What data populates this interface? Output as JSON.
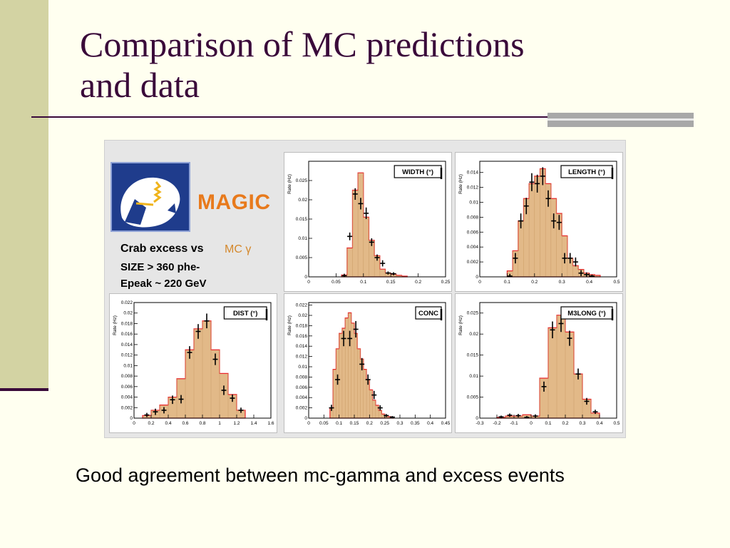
{
  "slide": {
    "title_line1": "Comparison of MC predictions",
    "title_line2": "and data",
    "caption": "Good agreement between mc-gamma and excess events"
  },
  "legend_box": {
    "logo_text": "MAGIC",
    "line1": "Crab excess vs",
    "mc_label": "MC  γ",
    "line2": "SIZE > 360 phe-",
    "line3": "Epeak ~ 220 GeV"
  },
  "colors": {
    "title": "#3a0a3a",
    "mc_fill": "#e2b988",
    "mc_line": "#e8262a",
    "data_points": "#000000",
    "logo_text": "#e87a1c"
  },
  "chart_data": [
    {
      "id": "width",
      "type": "bar",
      "title": "WIDTH (°)",
      "ylabel": "Rate (Hz)",
      "xlim": [
        0,
        0.25
      ],
      "ylim": [
        0,
        0.03
      ],
      "xticks": [
        0,
        0.05,
        0.1,
        0.15,
        0.2,
        0.25
      ],
      "xtick_labels": [
        "0",
        "0.05",
        "0.1",
        "0.15",
        "0.2",
        "0.25"
      ],
      "yticks": [
        0,
        0.005,
        0.01,
        0.015,
        0.02,
        0.025
      ],
      "ytick_labels": [
        "0",
        "0.005",
        "0.01",
        "0.015",
        "0.02",
        "0.025"
      ],
      "bin_edges": [
        0.06,
        0.07,
        0.08,
        0.09,
        0.1,
        0.11,
        0.12,
        0.13,
        0.14,
        0.15,
        0.16,
        0.17,
        0.18
      ],
      "mc": [
        0.0005,
        0.0075,
        0.0225,
        0.027,
        0.0155,
        0.0095,
        0.0055,
        0.002,
        0.001,
        0.0007,
        0.0004,
        0.0002
      ],
      "data_x": [
        0.065,
        0.075,
        0.085,
        0.095,
        0.105,
        0.115,
        0.125,
        0.135,
        0.145,
        0.155
      ],
      "data_y": [
        0.0003,
        0.0105,
        0.0215,
        0.019,
        0.0165,
        0.009,
        0.005,
        0.0035,
        0.001,
        0.0008
      ],
      "data_err": [
        0.0005,
        0.001,
        0.0015,
        0.0015,
        0.0015,
        0.001,
        0.0008,
        0.0008,
        0.0004,
        0.0004
      ]
    },
    {
      "id": "length",
      "type": "bar",
      "title": "LENGTH (°)",
      "ylabel": "Rate (Hz)",
      "xlim": [
        0,
        0.5
      ],
      "ylim": [
        0,
        0.0155
      ],
      "xticks": [
        0,
        0.1,
        0.2,
        0.3,
        0.4,
        0.5
      ],
      "xtick_labels": [
        "0",
        "0.1",
        "0.2",
        "0.3",
        "0.4",
        "0.5"
      ],
      "yticks": [
        0,
        0.002,
        0.004,
        0.006,
        0.008,
        0.01,
        0.012,
        0.014
      ],
      "ytick_labels": [
        "0",
        "0.002",
        "0.004",
        "0.006",
        "0.008",
        "0.01",
        "0.012",
        "0.014"
      ],
      "bin_edges": [
        0.1,
        0.12,
        0.14,
        0.16,
        0.18,
        0.2,
        0.22,
        0.24,
        0.26,
        0.28,
        0.3,
        0.32,
        0.34,
        0.36,
        0.38,
        0.4,
        0.42,
        0.44
      ],
      "mc": [
        0.0008,
        0.0035,
        0.0075,
        0.0105,
        0.0125,
        0.0135,
        0.0145,
        0.0125,
        0.0105,
        0.0085,
        0.0055,
        0.0025,
        0.0015,
        0.001,
        0.0005,
        0.0003,
        0.0002
      ],
      "data_x": [
        0.11,
        0.13,
        0.15,
        0.17,
        0.19,
        0.21,
        0.23,
        0.25,
        0.27,
        0.29,
        0.31,
        0.33,
        0.35,
        0.37,
        0.39,
        0.41
      ],
      "data_y": [
        0.0001,
        0.0025,
        0.0075,
        0.0095,
        0.0127,
        0.0125,
        0.0135,
        0.0105,
        0.0075,
        0.0073,
        0.0025,
        0.0025,
        0.002,
        0.0005,
        0.0003,
        0.0001
      ],
      "data_err": [
        0.0003,
        0.0007,
        0.001,
        0.0011,
        0.0012,
        0.0012,
        0.0012,
        0.0011,
        0.001,
        0.001,
        0.0007,
        0.0007,
        0.0006,
        0.0004,
        0.0003,
        0.0002
      ]
    },
    {
      "id": "dist",
      "type": "bar",
      "title": "DIST (°)",
      "ylabel": "Rate (Hz)",
      "xlim": [
        0,
        1.6
      ],
      "ylim": [
        0,
        0.022
      ],
      "xticks": [
        0,
        0.2,
        0.4,
        0.6,
        0.8,
        1,
        1.2,
        1.4,
        1.6
      ],
      "xtick_labels": [
        "0",
        "0.2",
        "0.4",
        "0.6",
        "0.8",
        "1",
        "1.2",
        "1.4",
        "1.6"
      ],
      "yticks": [
        0,
        0.002,
        0.004,
        0.006,
        0.008,
        0.01,
        0.012,
        0.014,
        0.016,
        0.018,
        0.02,
        0.022
      ],
      "ytick_labels": [
        "0",
        "0.002",
        "0.004",
        "0.006",
        "0.008",
        "0.01",
        "0.012",
        "0.014",
        "0.016",
        "0.018",
        "0.02",
        "0.022"
      ],
      "bin_edges": [
        0.1,
        0.2,
        0.3,
        0.4,
        0.5,
        0.6,
        0.7,
        0.8,
        0.9,
        1.0,
        1.1,
        1.2,
        1.3
      ],
      "mc": [
        0.0005,
        0.0015,
        0.0025,
        0.004,
        0.0075,
        0.013,
        0.017,
        0.0185,
        0.013,
        0.0085,
        0.0045,
        0.0015
      ],
      "data_x": [
        0.15,
        0.25,
        0.35,
        0.45,
        0.55,
        0.65,
        0.75,
        0.85,
        0.95,
        1.05,
        1.15,
        1.25
      ],
      "data_y": [
        0.0006,
        0.0012,
        0.0015,
        0.0035,
        0.0036,
        0.0125,
        0.0165,
        0.0185,
        0.0112,
        0.0053,
        0.0038,
        0.0015
      ],
      "data_err": [
        0.0004,
        0.0006,
        0.0006,
        0.0008,
        0.0008,
        0.0012,
        0.0014,
        0.0014,
        0.0011,
        0.0009,
        0.0007,
        0.0005
      ]
    },
    {
      "id": "conc",
      "type": "bar",
      "title": "CONC",
      "ylabel": "Rate (Hz)",
      "xlim": [
        0,
        0.45
      ],
      "ylim": [
        0,
        0.0225
      ],
      "xticks": [
        0,
        0.05,
        0.1,
        0.15,
        0.2,
        0.25,
        0.3,
        0.35,
        0.4,
        0.45
      ],
      "xtick_labels": [
        "0",
        "0.05",
        "0.1",
        "0.15",
        "0.2",
        "0.25",
        "0.3",
        "0.35",
        "0.4",
        "0.45"
      ],
      "yticks": [
        0,
        0.002,
        0.004,
        0.006,
        0.008,
        0.01,
        0.012,
        0.014,
        0.016,
        0.018,
        0.02,
        0.022
      ],
      "ytick_labels": [
        "0",
        "0.002",
        "0.004",
        "0.006",
        "0.008",
        "0.01",
        "0.012",
        "0.014",
        "0.016",
        "0.018",
        "0.02",
        "0.022"
      ],
      "bin_edges": [
        0.07,
        0.08,
        0.09,
        0.1,
        0.11,
        0.12,
        0.13,
        0.14,
        0.15,
        0.16,
        0.17,
        0.18,
        0.19,
        0.2,
        0.21,
        0.22,
        0.23,
        0.24,
        0.25,
        0.26,
        0.27,
        0.28
      ],
      "mc": [
        0.002,
        0.0095,
        0.0135,
        0.0165,
        0.0175,
        0.0195,
        0.0205,
        0.0185,
        0.0165,
        0.0135,
        0.0115,
        0.0095,
        0.0075,
        0.0055,
        0.0035,
        0.0025,
        0.0015,
        0.0008,
        0.0005,
        0.0003,
        0.0002
      ],
      "data_x": [
        0.075,
        0.095,
        0.115,
        0.135,
        0.155,
        0.175,
        0.195,
        0.215,
        0.235,
        0.255,
        0.275
      ],
      "data_y": [
        0.002,
        0.0075,
        0.0155,
        0.0155,
        0.0173,
        0.0105,
        0.0075,
        0.0045,
        0.002,
        0.0005,
        0.0002
      ],
      "data_err": [
        0.0006,
        0.001,
        0.0015,
        0.0015,
        0.0016,
        0.0012,
        0.001,
        0.0008,
        0.0005,
        0.0003,
        0.0002
      ]
    },
    {
      "id": "m3long",
      "type": "bar",
      "title": "M3LONG (°)",
      "ylabel": "Rate (Hz)",
      "xlim": [
        -0.3,
        0.5
      ],
      "ylim": [
        0,
        0.0275
      ],
      "xticks": [
        -0.3,
        -0.2,
        -0.1,
        0,
        0.1,
        0.2,
        0.3,
        0.4,
        0.5
      ],
      "xtick_labels": [
        "-0.3",
        "-0.2",
        "-0.1",
        "0",
        "0.1",
        "0.2",
        "0.3",
        "0.4",
        "0.5"
      ],
      "yticks": [
        0,
        0.005,
        0.01,
        0.015,
        0.02,
        0.025
      ],
      "ytick_labels": [
        "0",
        "0.005",
        "0.01",
        "0.015",
        "0.02",
        "0.025"
      ],
      "bin_edges": [
        -0.2,
        -0.15,
        -0.1,
        -0.05,
        0,
        0.05,
        0.1,
        0.15,
        0.2,
        0.25,
        0.3,
        0.35,
        0.4
      ],
      "mc": [
        0.0002,
        0.0005,
        0.0005,
        0.0008,
        0.0005,
        0.0095,
        0.0215,
        0.0245,
        0.0205,
        0.0105,
        0.0045,
        0.0012
      ],
      "data_x": [
        -0.175,
        -0.125,
        -0.075,
        -0.025,
        0.025,
        0.075,
        0.125,
        0.175,
        0.225,
        0.275,
        0.325,
        0.375
      ],
      "data_y": [
        0.0003,
        0.0007,
        0.0006,
        0.0002,
        0.0005,
        0.0075,
        0.021,
        0.0225,
        0.019,
        0.0105,
        0.004,
        0.0015
      ],
      "data_err": [
        0.0003,
        0.0004,
        0.0004,
        0.0003,
        0.0004,
        0.0012,
        0.002,
        0.002,
        0.0018,
        0.0013,
        0.0008,
        0.0005
      ]
    }
  ]
}
